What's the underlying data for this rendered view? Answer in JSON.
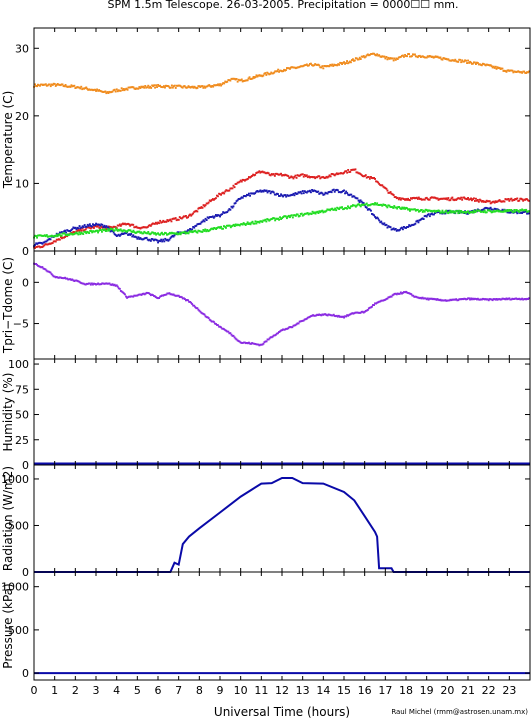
{
  "chart_data": {
    "title": "SPM 1.5m Telescope. 26-03-2005. Precipitation = 0000☐☐ mm.",
    "xlabel": "Universal Time (hours)",
    "credit": "Raul Michel (rmm@astrosen.unam.mx)",
    "x_ticks": [
      "0",
      "1",
      "2",
      "3",
      "4",
      "5",
      "6",
      "7",
      "8",
      "9",
      "10",
      "11",
      "12",
      "13",
      "14",
      "15",
      "16",
      "17",
      "18",
      "19",
      "20",
      "21",
      "22",
      "23"
    ],
    "xlim": [
      0,
      24
    ],
    "panels": [
      {
        "type": "scatter",
        "ylabel": "Temperature (C)",
        "ylim": [
          0,
          33
        ],
        "y_ticks": [
          0,
          10,
          20,
          30
        ],
        "series": [
          {
            "color": "#f08c1e",
            "values": [
              [
                0,
                24.5
              ],
              [
                1,
                24.6
              ],
              [
                2,
                24.3
              ],
              [
                3,
                23.8
              ],
              [
                3.5,
                23.4
              ],
              [
                4,
                23.8
              ],
              [
                5,
                24.2
              ],
              [
                6,
                24.4
              ],
              [
                7,
                24.3
              ],
              [
                8,
                24.2
              ],
              [
                9,
                24.6
              ],
              [
                9.5,
                25.4
              ],
              [
                10,
                25.2
              ],
              [
                11,
                26
              ],
              [
                12,
                26.8
              ],
              [
                13,
                27.3
              ],
              [
                13.5,
                27.6
              ],
              [
                14,
                27.2
              ],
              [
                15,
                27.8
              ],
              [
                16,
                28.8
              ],
              [
                16.5,
                29.2
              ],
              [
                17,
                28.6
              ],
              [
                17.5,
                28.3
              ],
              [
                18,
                29
              ],
              [
                19,
                28.8
              ],
              [
                20,
                28.4
              ],
              [
                21,
                28
              ],
              [
                22,
                27.4
              ],
              [
                23,
                26.6
              ],
              [
                24,
                26.4
              ]
            ]
          },
          {
            "color": "#dd2020",
            "values": [
              [
                0,
                0.5
              ],
              [
                0.5,
                0.8
              ],
              [
                1,
                1.5
              ],
              [
                1.5,
                2.2
              ],
              [
                2,
                2.8
              ],
              [
                2.5,
                3.3
              ],
              [
                3,
                3.6
              ],
              [
                3.5,
                3.4
              ],
              [
                4,
                3.6
              ],
              [
                4.5,
                4.1
              ],
              [
                5,
                3.5
              ],
              [
                5.5,
                3.5
              ],
              [
                6,
                4.3
              ],
              [
                6.5,
                4.5
              ],
              [
                7,
                4.8
              ],
              [
                7.5,
                5.2
              ],
              [
                8,
                6.2
              ],
              [
                8.5,
                7.3
              ],
              [
                9,
                8.4
              ],
              [
                9.5,
                9.2
              ],
              [
                10,
                10.3
              ],
              [
                10.5,
                11.1
              ],
              [
                11,
                11.8
              ],
              [
                11.5,
                11.2
              ],
              [
                12,
                11.3
              ],
              [
                12.5,
                10.9
              ],
              [
                13,
                11.2
              ],
              [
                13.5,
                11
              ],
              [
                14,
                10.9
              ],
              [
                14.5,
                11.3
              ],
              [
                15,
                11.7
              ],
              [
                15.5,
                12
              ],
              [
                16,
                11.1
              ],
              [
                16.5,
                10.6
              ],
              [
                17,
                9.2
              ],
              [
                17.5,
                7.9
              ],
              [
                18,
                7.7
              ],
              [
                19,
                7.8
              ],
              [
                20,
                7.7
              ],
              [
                21,
                7.8
              ],
              [
                22,
                7.2
              ],
              [
                23,
                7.6
              ],
              [
                24,
                7.6
              ]
            ]
          },
          {
            "color": "#1a1ab0",
            "values": [
              [
                0,
                0.9
              ],
              [
                0.5,
                1.2
              ],
              [
                1,
                2.3
              ],
              [
                1.5,
                2.9
              ],
              [
                2,
                3.4
              ],
              [
                2.5,
                3.7
              ],
              [
                3,
                3.9
              ],
              [
                3.5,
                3.7
              ],
              [
                4,
                2.2
              ],
              [
                4.5,
                2.6
              ],
              [
                5,
                2
              ],
              [
                5.5,
                1.8
              ],
              [
                6,
                1.4
              ],
              [
                6.5,
                1.7
              ],
              [
                7,
                2.7
              ],
              [
                7.5,
                3
              ],
              [
                8,
                4.1
              ],
              [
                8.5,
                5
              ],
              [
                9,
                5.3
              ],
              [
                9.5,
                6.2
              ],
              [
                10,
                7.9
              ],
              [
                10.5,
                8.4
              ],
              [
                11,
                8.9
              ],
              [
                11.5,
                8.7
              ],
              [
                12,
                8.2
              ],
              [
                12.5,
                8.3
              ],
              [
                13,
                8.7
              ],
              [
                13.5,
                8.9
              ],
              [
                14,
                8.4
              ],
              [
                14.5,
                8.9
              ],
              [
                15,
                8.8
              ],
              [
                15.5,
                8.1
              ],
              [
                16,
                6.8
              ],
              [
                16.5,
                5.1
              ],
              [
                17,
                3.8
              ],
              [
                17.5,
                3.1
              ],
              [
                18,
                3.5
              ],
              [
                18.5,
                4.2
              ],
              [
                19,
                5.2
              ],
              [
                19.5,
                5.6
              ],
              [
                20,
                5.8
              ],
              [
                21,
                5.7
              ],
              [
                22,
                6.4
              ],
              [
                23,
                5.8
              ],
              [
                24,
                5.7
              ]
            ]
          },
          {
            "color": "#22dd22",
            "values": [
              [
                0,
                2.1
              ],
              [
                1,
                2.3
              ],
              [
                2,
                2.6
              ],
              [
                3,
                2.9
              ],
              [
                4,
                3.2
              ],
              [
                5,
                2.8
              ],
              [
                6,
                2.5
              ],
              [
                7,
                2.6
              ],
              [
                8,
                2.9
              ],
              [
                9,
                3.4
              ],
              [
                10,
                3.9
              ],
              [
                11,
                4.4
              ],
              [
                12,
                4.9
              ],
              [
                13,
                5.4
              ],
              [
                14,
                5.9
              ],
              [
                15,
                6.4
              ],
              [
                16,
                6.9
              ],
              [
                16.5,
                7
              ],
              [
                17,
                6.7
              ],
              [
                18,
                6.2
              ],
              [
                19,
                5.9
              ],
              [
                20,
                5.8
              ],
              [
                21,
                5.8
              ],
              [
                22,
                5.9
              ],
              [
                23,
                5.9
              ],
              [
                24,
                6
              ]
            ]
          }
        ]
      },
      {
        "type": "scatter",
        "ylabel": "Tpri−Tdome (C)",
        "ylim": [
          -9.3,
          3.8
        ],
        "y_ticks": [
          0,
          -5
        ],
        "y_tick_labels": [
          "0",
          "−5"
        ],
        "series": [
          {
            "color": "#8a2be2",
            "values": [
              [
                0,
                2.3
              ],
              [
                0.5,
                1.7
              ],
              [
                1,
                0.7
              ],
              [
                1.5,
                0.5
              ],
              [
                2,
                0.2
              ],
              [
                2.5,
                -0.2
              ],
              [
                3,
                -0.2
              ],
              [
                3.5,
                -0.1
              ],
              [
                4,
                -0.4
              ],
              [
                4.5,
                -1.8
              ],
              [
                5,
                -1.6
              ],
              [
                5.5,
                -1.3
              ],
              [
                6,
                -1.9
              ],
              [
                6.5,
                -1.3
              ],
              [
                7,
                -1.7
              ],
              [
                7.5,
                -2.3
              ],
              [
                8,
                -3.4
              ],
              [
                8.5,
                -4.5
              ],
              [
                9,
                -5.4
              ],
              [
                9.5,
                -6.2
              ],
              [
                10,
                -7.3
              ],
              [
                10.5,
                -7.4
              ],
              [
                11,
                -7.6
              ],
              [
                11.5,
                -6.6
              ],
              [
                12,
                -5.8
              ],
              [
                12.5,
                -5.4
              ],
              [
                13,
                -4.6
              ],
              [
                13.5,
                -4
              ],
              [
                14,
                -3.9
              ],
              [
                14.5,
                -4
              ],
              [
                15,
                -4.2
              ],
              [
                15.5,
                -3.7
              ],
              [
                16,
                -3.6
              ],
              [
                16.5,
                -2.6
              ],
              [
                17,
                -2.1
              ],
              [
                17.5,
                -1.4
              ],
              [
                18,
                -1.2
              ],
              [
                18.5,
                -1.8
              ],
              [
                19,
                -2
              ],
              [
                20,
                -2.2
              ],
              [
                21,
                -2
              ],
              [
                22,
                -2.1
              ],
              [
                23,
                -2
              ],
              [
                24,
                -2
              ]
            ]
          }
        ]
      },
      {
        "type": "line",
        "ylabel": "Humidity (%)",
        "ylim": [
          0,
          105
        ],
        "y_ticks": [
          0,
          25,
          50,
          75,
          100
        ],
        "series": [
          {
            "color": "#0a0aa8",
            "values": [
              [
                0,
                1.5
              ],
              [
                24,
                1.5
              ]
            ]
          }
        ]
      },
      {
        "type": "line",
        "ylabel": "Radiation (W/m2)",
        "ylim": [
          0,
          1150
        ],
        "y_ticks": [
          0,
          500,
          1000
        ],
        "series": [
          {
            "color": "#0a0aa8",
            "values": [
              [
                0,
                0
              ],
              [
                6.6,
                0
              ],
              [
                6.8,
                100
              ],
              [
                7,
                80
              ],
              [
                7.2,
                300
              ],
              [
                7.5,
                380
              ],
              [
                8,
                470
              ],
              [
                9,
                640
              ],
              [
                10,
                810
              ],
              [
                10.5,
                880
              ],
              [
                11,
                950
              ],
              [
                11.5,
                955
              ],
              [
                12,
                1010
              ],
              [
                12.5,
                1010
              ],
              [
                13,
                955
              ],
              [
                14,
                950
              ],
              [
                15,
                860
              ],
              [
                15.5,
                770
              ],
              [
                16,
                600
              ],
              [
                16.5,
                430
              ],
              [
                16.6,
                380
              ],
              [
                16.7,
                40
              ],
              [
                17,
                40
              ],
              [
                17.3,
                40
              ],
              [
                17.4,
                0
              ],
              [
                24,
                0
              ]
            ]
          }
        ]
      },
      {
        "type": "line",
        "ylabel": "Pressure (kPa)",
        "ylim": [
          -80,
          1170
        ],
        "y_ticks": [
          0,
          500,
          1000
        ],
        "series": [
          {
            "color": "#0a0aa8",
            "values": [
              [
                0,
                0
              ],
              [
                24,
                0
              ]
            ]
          }
        ]
      }
    ]
  }
}
